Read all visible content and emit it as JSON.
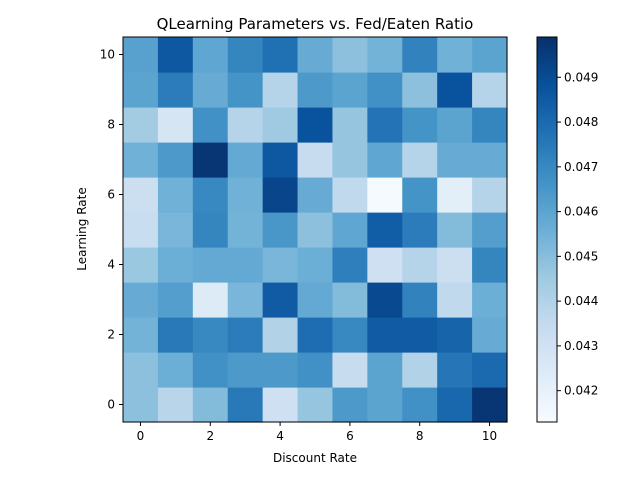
{
  "chart_data": {
    "type": "heatmap",
    "title": "QLearning Parameters vs. Fed/Eaten Ratio",
    "xlabel": "Discount Rate",
    "ylabel": "Learning Rate",
    "x": [
      0,
      1,
      2,
      3,
      4,
      5,
      6,
      7,
      8,
      9,
      10
    ],
    "y": [
      0,
      1,
      2,
      3,
      4,
      5,
      6,
      7,
      8,
      9,
      10
    ],
    "xlim": [
      -0.5,
      10.5
    ],
    "ylim": [
      -0.5,
      10.5
    ],
    "x_ticks": [
      0,
      2,
      4,
      6,
      8,
      10
    ],
    "y_ticks": [
      0,
      2,
      4,
      6,
      8,
      10
    ],
    "colormap": "Blues",
    "vmin": 0.0413,
    "vmax": 0.0499,
    "colorbar_ticks": [
      "0.042",
      "0.043",
      "0.044",
      "0.045",
      "0.046",
      "0.047",
      "0.048",
      "0.049"
    ],
    "colorbar_tick_values": [
      0.042,
      0.043,
      0.044,
      0.045,
      0.046,
      0.047,
      0.048,
      0.049
    ],
    "grid": false,
    "rows_bottom_to_top": [
      [
        0.0449,
        0.0438,
        0.0451,
        0.0475,
        0.0431,
        0.0447,
        0.0464,
        0.046,
        0.0467,
        0.0481,
        0.0497
      ],
      [
        0.0449,
        0.0456,
        0.0467,
        0.0464,
        0.0464,
        0.0467,
        0.0434,
        0.046,
        0.044,
        0.0476,
        0.048
      ],
      [
        0.0454,
        0.0475,
        0.047,
        0.0474,
        0.044,
        0.0479,
        0.047,
        0.0485,
        0.0485,
        0.0482,
        0.0457
      ],
      [
        0.0457,
        0.0462,
        0.0424,
        0.0453,
        0.0485,
        0.0458,
        0.0451,
        0.0491,
        0.0472,
        0.0436,
        0.0456
      ],
      [
        0.0446,
        0.0456,
        0.0458,
        0.0458,
        0.0453,
        0.0456,
        0.0473,
        0.0431,
        0.0439,
        0.0432,
        0.0471
      ],
      [
        0.0433,
        0.0453,
        0.0471,
        0.0454,
        0.0465,
        0.0449,
        0.0459,
        0.0484,
        0.0474,
        0.0451,
        0.0462
      ],
      [
        0.0432,
        0.0455,
        0.047,
        0.0455,
        0.0492,
        0.0457,
        0.0436,
        0.0414,
        0.0466,
        0.0422,
        0.0439
      ],
      [
        0.0455,
        0.0464,
        0.0497,
        0.0458,
        0.0486,
        0.0434,
        0.0447,
        0.0459,
        0.0439,
        0.0457,
        0.0457
      ],
      [
        0.0444,
        0.0428,
        0.0467,
        0.0439,
        0.0445,
        0.0488,
        0.0447,
        0.0477,
        0.0466,
        0.046,
        0.0471
      ],
      [
        0.046,
        0.0474,
        0.0457,
        0.0466,
        0.0439,
        0.0464,
        0.046,
        0.0467,
        0.0449,
        0.0488,
        0.0439
      ],
      [
        0.0461,
        0.0486,
        0.0459,
        0.0471,
        0.0478,
        0.0457,
        0.0449,
        0.0454,
        0.0472,
        0.0455,
        0.046
      ]
    ]
  }
}
